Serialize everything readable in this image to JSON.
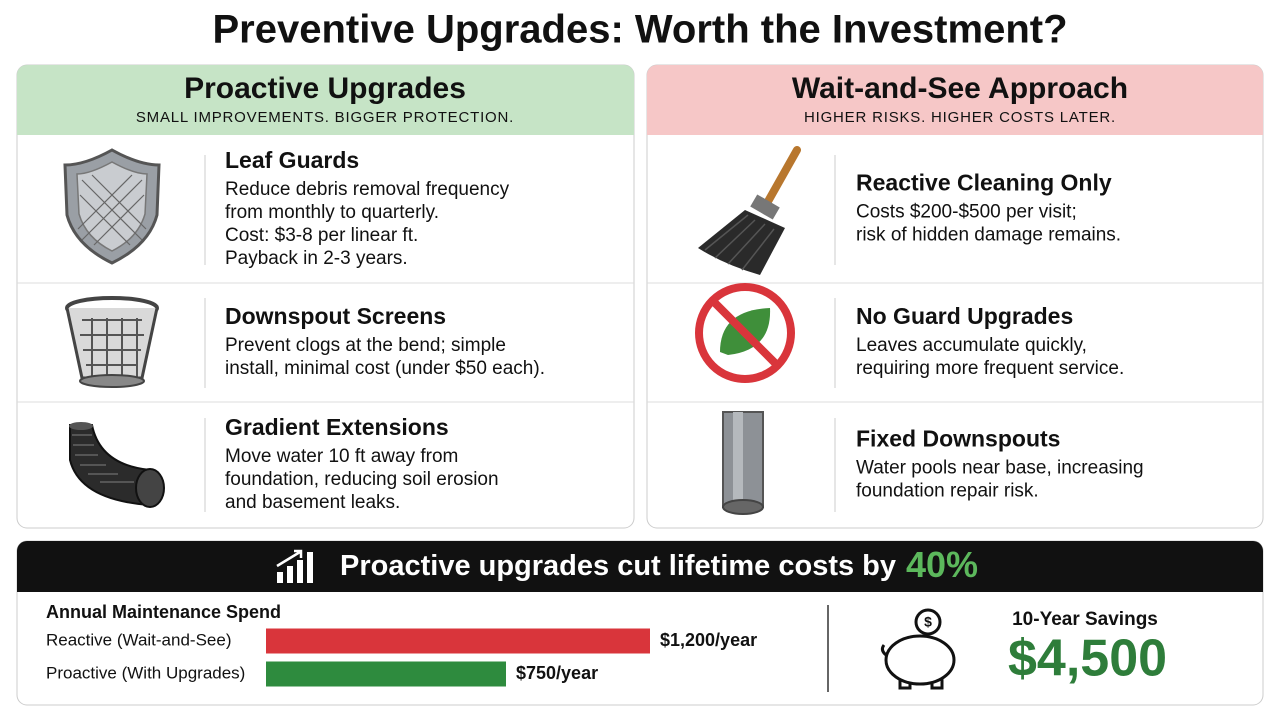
{
  "header": {
    "title": "Preventive Upgrades: Worth the Investment?"
  },
  "proactive": {
    "title": "Proactive Upgrades",
    "subtitle": "SMALL IMPROVEMENTS. BIGGER PROTECTION.",
    "items": [
      {
        "title": "Leaf Guards",
        "lines": [
          "Reduce debris removal frequency",
          "from monthly to quarterly.",
          "Cost: $3-8 per linear ft.",
          "Payback in 2-3 years."
        ]
      },
      {
        "title": "Downspout Screens",
        "lines": [
          "Prevent clogs at the bend; simple",
          "install, minimal cost (under $50 each)."
        ]
      },
      {
        "title": "Gradient Extensions",
        "lines": [
          "Move water 10 ft away from",
          "foundation, reducing soil erosion",
          "and basement leaks."
        ]
      }
    ]
  },
  "reactive": {
    "title": "Wait-and-See Approach",
    "subtitle": "HIGHER RISKS. HIGHER COSTS LATER.",
    "items": [
      {
        "title": "Reactive Cleaning Only",
        "lines": [
          "Costs $200-$500 per visit;",
          "risk of hidden damage remains."
        ]
      },
      {
        "title": "No Guard Upgrades",
        "lines": [
          "Leaves accumulate quickly,",
          "requiring more frequent service."
        ]
      },
      {
        "title": "Fixed Downspouts",
        "lines": [
          "Water pools near base, increasing",
          "foundation repair risk."
        ]
      }
    ]
  },
  "banner": {
    "text": "Proactive upgrades cut lifetime costs by",
    "highlight": "40%"
  },
  "spend_chart": {
    "type": "bar",
    "title": "Annual Maintenance Spend",
    "categories": [
      "Reactive (Wait-and-See)",
      "Proactive (With Upgrades)"
    ],
    "values": [
      1200,
      750
    ],
    "value_labels": [
      "$1,200/year",
      "$750/year"
    ],
    "colors": [
      "#d9353b",
      "#2e8b3e"
    ]
  },
  "savings": {
    "label": "10-Year Savings",
    "value": "$4,500"
  }
}
